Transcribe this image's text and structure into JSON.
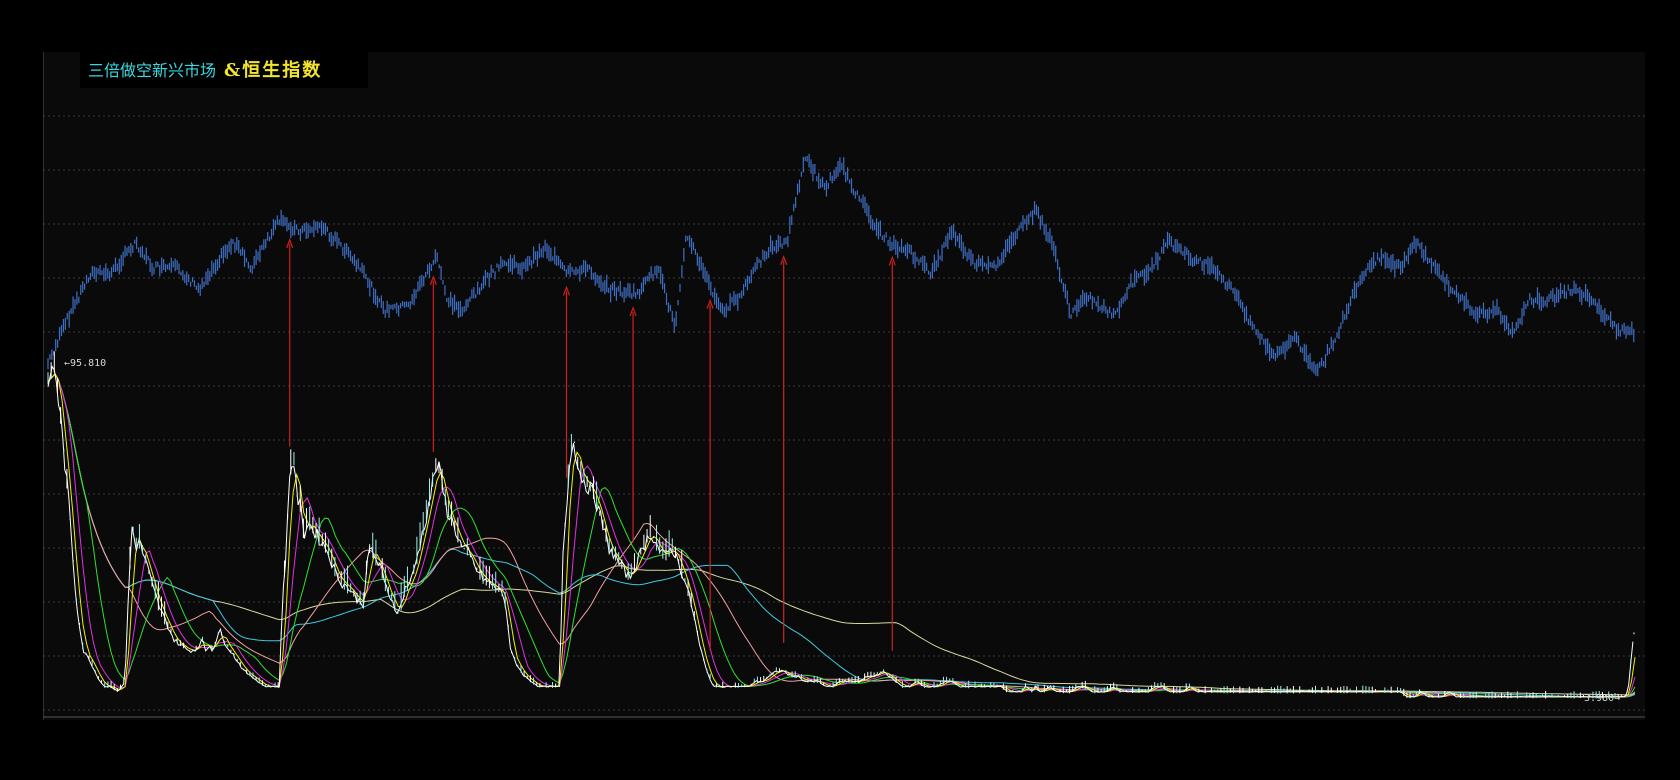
{
  "chart_data": {
    "type": "line",
    "title_left": "三倍做空新兴市场",
    "title_right": "&恒生指数",
    "max_label": "95.810",
    "min_label": "3.980",
    "grid": true,
    "colors": {
      "background": "#0a0a0a",
      "hsi": "#3f6fc4",
      "ma_lines": [
        "#ffffff",
        "#f3f000",
        "#e030e0",
        "#30e030",
        "#f0a0a0",
        "#40c8e0",
        "#d8d8a0"
      ],
      "arrow": "#d02020"
    },
    "series": [
      {
        "name": "恒生指数",
        "points": [
          [
            0,
            43
          ],
          [
            6,
            52
          ],
          [
            12,
            60
          ],
          [
            18,
            60
          ],
          [
            25,
            66
          ],
          [
            30,
            61
          ],
          [
            37,
            61
          ],
          [
            43,
            57
          ],
          [
            48,
            62
          ],
          [
            53,
            66
          ],
          [
            58,
            61
          ],
          [
            66,
            70
          ],
          [
            72,
            68
          ],
          [
            78,
            69
          ],
          [
            84,
            65
          ],
          [
            90,
            60
          ],
          [
            96,
            53
          ],
          [
            103,
            54
          ],
          [
            108,
            60
          ],
          [
            111,
            63
          ],
          [
            114,
            55
          ],
          [
            118,
            53
          ],
          [
            124,
            58
          ],
          [
            130,
            62
          ],
          [
            136,
            61
          ],
          [
            142,
            65
          ],
          [
            148,
            60
          ],
          [
            154,
            61
          ],
          [
            160,
            57
          ],
          [
            168,
            56
          ],
          [
            174,
            61
          ],
          [
            179,
            50
          ],
          [
            182,
            67
          ],
          [
            184,
            65
          ],
          [
            188,
            59
          ],
          [
            192,
            53
          ],
          [
            197,
            55
          ],
          [
            202,
            61
          ],
          [
            206,
            65
          ],
          [
            211,
            66
          ],
          [
            216,
            82
          ],
          [
            222,
            76
          ],
          [
            226,
            81
          ],
          [
            230,
            76
          ],
          [
            236,
            69
          ],
          [
            240,
            66
          ],
          [
            246,
            64
          ],
          [
            252,
            60
          ],
          [
            258,
            68
          ],
          [
            264,
            62
          ],
          [
            270,
            61
          ],
          [
            276,
            67
          ],
          [
            282,
            72
          ],
          [
            287,
            65
          ],
          [
            292,
            52
          ],
          [
            296,
            56
          ],
          [
            300,
            54
          ],
          [
            305,
            52
          ],
          [
            309,
            58
          ],
          [
            315,
            61
          ],
          [
            320,
            66
          ],
          [
            326,
            63
          ],
          [
            332,
            61
          ],
          [
            338,
            57
          ],
          [
            344,
            50
          ],
          [
            350,
            44
          ],
          [
            356,
            48
          ],
          [
            362,
            41
          ],
          [
            367,
            47
          ],
          [
            372,
            55
          ],
          [
            376,
            60
          ],
          [
            380,
            63
          ],
          [
            386,
            61
          ],
          [
            390,
            66
          ],
          [
            396,
            61
          ],
          [
            402,
            56
          ],
          [
            408,
            52
          ],
          [
            414,
            53
          ],
          [
            418,
            49
          ],
          [
            423,
            55
          ],
          [
            428,
            55
          ],
          [
            435,
            57
          ],
          [
            441,
            55
          ],
          [
            448,
            49
          ],
          [
            453,
            49
          ]
        ]
      },
      {
        "name": "三倍做空新兴市场",
        "points": [
          [
            0,
            62
          ],
          [
            2,
            65
          ],
          [
            4,
            52
          ],
          [
            6,
            38
          ],
          [
            8,
            20
          ],
          [
            10,
            10
          ],
          [
            12,
            8
          ],
          [
            14,
            5
          ],
          [
            16,
            3
          ],
          [
            18,
            3
          ],
          [
            20,
            2
          ],
          [
            22,
            4
          ],
          [
            23,
            22
          ],
          [
            24,
            34
          ],
          [
            25,
            30
          ],
          [
            26,
            31
          ],
          [
            28,
            27
          ],
          [
            30,
            22
          ],
          [
            32,
            18
          ],
          [
            34,
            15
          ],
          [
            36,
            12
          ],
          [
            38,
            11
          ],
          [
            40,
            10
          ],
          [
            42,
            10
          ],
          [
            43,
            11
          ],
          [
            44,
            12
          ],
          [
            45,
            10
          ],
          [
            46,
            11
          ],
          [
            47,
            10
          ],
          [
            48,
            12
          ],
          [
            49,
            14
          ],
          [
            50,
            12
          ],
          [
            52,
            10
          ],
          [
            54,
            8
          ],
          [
            56,
            6
          ],
          [
            58,
            5
          ],
          [
            60,
            4
          ],
          [
            62,
            3
          ],
          [
            64,
            3
          ],
          [
            66,
            3
          ],
          [
            67,
            20
          ],
          [
            68,
            30
          ],
          [
            69,
            44
          ],
          [
            70,
            48
          ],
          [
            71,
            40
          ],
          [
            72,
            38
          ],
          [
            73,
            32
          ],
          [
            74,
            35
          ],
          [
            76,
            33
          ],
          [
            78,
            31
          ],
          [
            80,
            29
          ],
          [
            82,
            25
          ],
          [
            84,
            23
          ],
          [
            86,
            22
          ],
          [
            88,
            20
          ],
          [
            90,
            19
          ],
          [
            91,
            26
          ],
          [
            92,
            30
          ],
          [
            94,
            27
          ],
          [
            95,
            26
          ],
          [
            96,
            23
          ],
          [
            98,
            20
          ],
          [
            100,
            17
          ],
          [
            102,
            22
          ],
          [
            104,
            24
          ],
          [
            106,
            30
          ],
          [
            108,
            36
          ],
          [
            110,
            43
          ],
          [
            111,
            46
          ],
          [
            112,
            44
          ],
          [
            113,
            40
          ],
          [
            114,
            37
          ],
          [
            116,
            34
          ],
          [
            118,
            30
          ],
          [
            120,
            29
          ],
          [
            122,
            26
          ],
          [
            124,
            24
          ],
          [
            126,
            23
          ],
          [
            128,
            22
          ],
          [
            130,
            21
          ],
          [
            131,
            17
          ],
          [
            132,
            10
          ],
          [
            134,
            7
          ],
          [
            136,
            5
          ],
          [
            138,
            4
          ],
          [
            140,
            3
          ],
          [
            142,
            3
          ],
          [
            144,
            3
          ],
          [
            146,
            3
          ],
          [
            147,
            28
          ],
          [
            148,
            38
          ],
          [
            149,
            47
          ],
          [
            150,
            52
          ],
          [
            151,
            46
          ],
          [
            152,
            44
          ],
          [
            154,
            42
          ],
          [
            156,
            40
          ],
          [
            158,
            35
          ],
          [
            160,
            30
          ],
          [
            162,
            28
          ],
          [
            164,
            26
          ],
          [
            166,
            24
          ],
          [
            168,
            27
          ],
          [
            170,
            30
          ],
          [
            172,
            33
          ],
          [
            174,
            30
          ],
          [
            176,
            28
          ],
          [
            178,
            30
          ],
          [
            180,
            27
          ],
          [
            182,
            23
          ],
          [
            184,
            18
          ],
          [
            186,
            11
          ],
          [
            188,
            6
          ],
          [
            190,
            3
          ],
          [
            192,
            3
          ],
          [
            194,
            3
          ],
          [
            196,
            3
          ],
          [
            198,
            3
          ],
          [
            200,
            3
          ],
          [
            202,
            4
          ],
          [
            204,
            4
          ],
          [
            206,
            5
          ],
          [
            208,
            6
          ],
          [
            210,
            6
          ],
          [
            212,
            5
          ],
          [
            214,
            5
          ],
          [
            216,
            4
          ],
          [
            218,
            4
          ],
          [
            220,
            4
          ],
          [
            222,
            3
          ],
          [
            224,
            3
          ],
          [
            226,
            4
          ],
          [
            228,
            4
          ],
          [
            230,
            4
          ],
          [
            232,
            4
          ],
          [
            234,
            5
          ],
          [
            236,
            5
          ],
          [
            238,
            6
          ],
          [
            240,
            5
          ],
          [
            242,
            4
          ],
          [
            244,
            3
          ],
          [
            246,
            3
          ],
          [
            248,
            4
          ],
          [
            250,
            3
          ],
          [
            252,
            3
          ],
          [
            254,
            3
          ],
          [
            256,
            4
          ],
          [
            258,
            4
          ],
          [
            260,
            3
          ],
          [
            262,
            3
          ],
          [
            264,
            3
          ],
          [
            266,
            3
          ],
          [
            268,
            3
          ],
          [
            270,
            3
          ],
          [
            272,
            3
          ],
          [
            274,
            2
          ],
          [
            276,
            2
          ],
          [
            278,
            2
          ],
          [
            279,
            3
          ],
          [
            281,
            2
          ],
          [
            282,
            3
          ],
          [
            283,
            2
          ],
          [
            284,
            2
          ],
          [
            286,
            3
          ],
          [
            288,
            2
          ],
          [
            290,
            2
          ],
          [
            292,
            2
          ],
          [
            294,
            3
          ],
          [
            296,
            3
          ],
          [
            298,
            2
          ],
          [
            300,
            2
          ],
          [
            302,
            2
          ],
          [
            304,
            3
          ],
          [
            306,
            2
          ],
          [
            308,
            2
          ],
          [
            310,
            2
          ],
          [
            312,
            2
          ],
          [
            314,
            2
          ],
          [
            316,
            3
          ],
          [
            318,
            3
          ],
          [
            320,
            2
          ],
          [
            322,
            2
          ],
          [
            324,
            2
          ],
          [
            326,
            3
          ],
          [
            328,
            2
          ],
          [
            330,
            2
          ],
          [
            332,
            2
          ],
          [
            334,
            2
          ],
          [
            336,
            2
          ],
          [
            338,
            2
          ],
          [
            340,
            2
          ],
          [
            342,
            2
          ],
          [
            344,
            2
          ],
          [
            346,
            2
          ],
          [
            348,
            2
          ],
          [
            350,
            2
          ],
          [
            352,
            2
          ],
          [
            354,
            2
          ],
          [
            356,
            2
          ],
          [
            358,
            2
          ],
          [
            360,
            2
          ],
          [
            362,
            2
          ],
          [
            364,
            2
          ],
          [
            366,
            2
          ],
          [
            368,
            2
          ],
          [
            370,
            2
          ],
          [
            372,
            2
          ],
          [
            374,
            2
          ],
          [
            376,
            2
          ],
          [
            378,
            2
          ],
          [
            380,
            2
          ],
          [
            382,
            2
          ],
          [
            384,
            2
          ],
          [
            386,
            2
          ],
          [
            388,
            1
          ],
          [
            390,
            1
          ],
          [
            392,
            2
          ],
          [
            394,
            1
          ],
          [
            396,
            1
          ],
          [
            398,
            1
          ],
          [
            400,
            2
          ],
          [
            402,
            1
          ],
          [
            404,
            1
          ],
          [
            406,
            1
          ],
          [
            408,
            1
          ],
          [
            410,
            1
          ],
          [
            412,
            1
          ],
          [
            414,
            1
          ],
          [
            416,
            1
          ],
          [
            418,
            1
          ],
          [
            420,
            1
          ],
          [
            422,
            1
          ],
          [
            424,
            1
          ],
          [
            426,
            1
          ],
          [
            428,
            1
          ],
          [
            430,
            1
          ],
          [
            432,
            1
          ],
          [
            434,
            1
          ],
          [
            436,
            1
          ],
          [
            438,
            1
          ],
          [
            440,
            1
          ],
          [
            442,
            1
          ],
          [
            444,
            1
          ],
          [
            446,
            1
          ],
          [
            448,
            1
          ],
          [
            450,
            1
          ],
          [
            451,
            2
          ],
          [
            452,
            9
          ],
          [
            453,
            15
          ]
        ]
      }
    ],
    "arrows_x": [
      69,
      110,
      148,
      167,
      189,
      210,
      241
    ]
  }
}
